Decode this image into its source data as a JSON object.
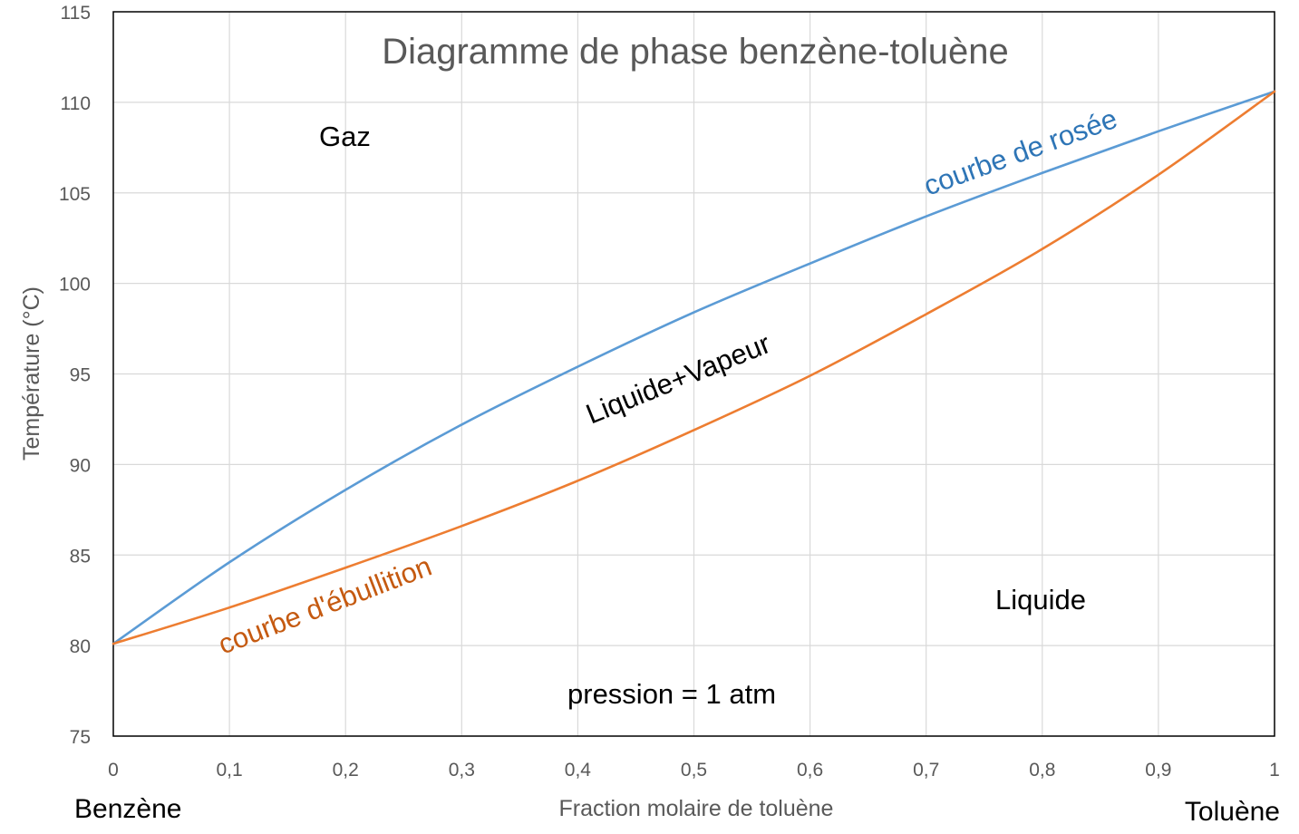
{
  "chart_data": {
    "type": "line",
    "title": "Diagramme de phase benzène-toluène",
    "xlabel": "Fraction molaire de toluène",
    "ylabel": "Température (°C)",
    "xlim": [
      0,
      1
    ],
    "ylim": [
      75,
      115
    ],
    "x_ticks": [
      "0",
      "0,1",
      "0,2",
      "0,3",
      "0,4",
      "0,5",
      "0,6",
      "0,7",
      "0,8",
      "0,9",
      "1"
    ],
    "y_ticks": [
      "75",
      "80",
      "85",
      "90",
      "95",
      "100",
      "105",
      "110",
      "115"
    ],
    "grid": true,
    "series": [
      {
        "name": "courbe de rosée",
        "color": "#5B9BD5",
        "x": [
          0,
          0.1,
          0.2,
          0.3,
          0.4,
          0.5,
          0.6,
          0.7,
          0.8,
          0.9,
          1.0
        ],
        "y": [
          80.1,
          84.6,
          88.6,
          92.2,
          95.4,
          98.4,
          101.1,
          103.7,
          106.1,
          108.4,
          110.6
        ]
      },
      {
        "name": "courbe d'ébullition",
        "color": "#ED7D31",
        "x": [
          0,
          0.1,
          0.2,
          0.3,
          0.4,
          0.5,
          0.6,
          0.7,
          0.8,
          0.9,
          1.0
        ],
        "y": [
          80.1,
          82.1,
          84.3,
          86.6,
          89.1,
          91.9,
          94.9,
          98.3,
          101.9,
          106.0,
          110.6
        ]
      }
    ],
    "annotations": {
      "gas": "Gaz",
      "two_phase": "Liquide+Vapeur",
      "liquid": "Liquide",
      "pressure": "pression = 1 atm",
      "left_end": "Benzène",
      "right_end": "Toluène"
    }
  }
}
